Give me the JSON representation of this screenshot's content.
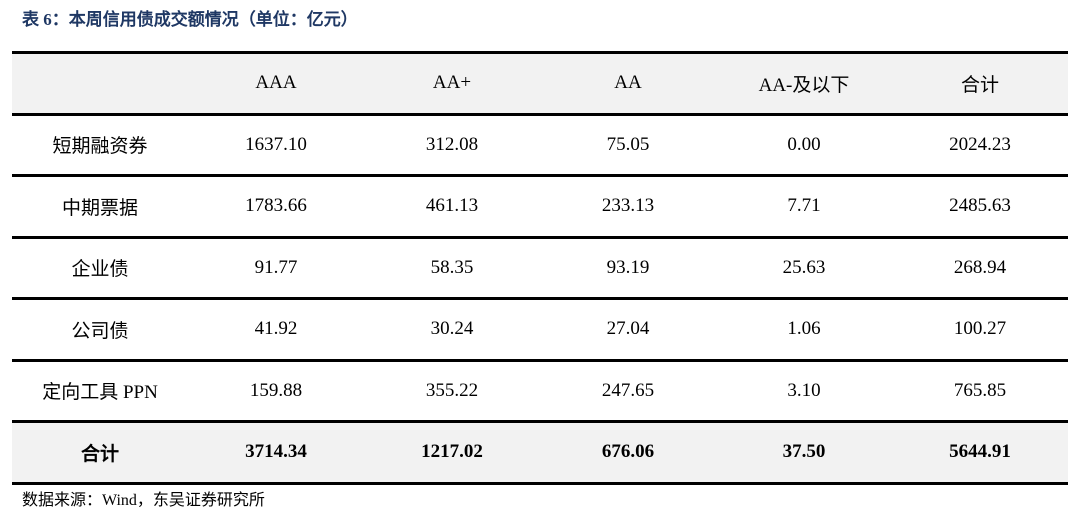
{
  "title": "表 6：本周信用债成交额情况（单位：亿元）",
  "table": {
    "header": [
      "AAA",
      "AA+",
      "AA",
      "AA-及以下",
      "合计"
    ],
    "rows": [
      [
        "短期融资券",
        "1637.10",
        "312.08",
        "75.05",
        "0.00",
        "2024.23"
      ],
      [
        "中期票据",
        "1783.66",
        "461.13",
        "233.13",
        "7.71",
        "2485.63"
      ],
      [
        "企业债",
        "91.77",
        "58.35",
        "93.19",
        "25.63",
        "268.94"
      ],
      [
        "公司债",
        "41.92",
        "30.24",
        "27.04",
        "1.06",
        "100.27"
      ],
      [
        "定向工具 PPN",
        "159.88",
        "355.22",
        "247.65",
        "3.10",
        "765.85"
      ]
    ],
    "total": [
      "合计",
      "3714.34",
      "1217.02",
      "676.06",
      "37.50",
      "5644.91"
    ]
  },
  "source": "数据来源：Wind，东吴证券研究所"
}
